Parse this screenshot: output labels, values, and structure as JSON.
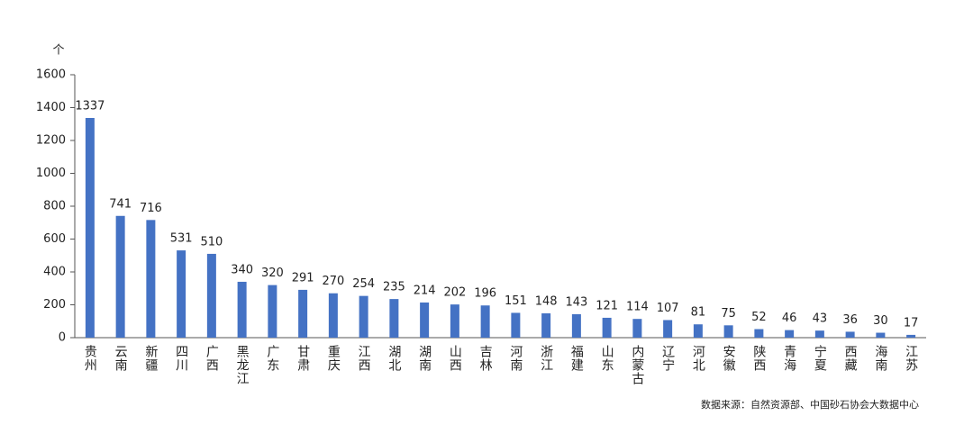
{
  "chart_data": {
    "type": "bar",
    "y_label": "个",
    "source": "数据来源：自然资源部、中国砂石协会大数据中心",
    "categories": [
      "贵州",
      "云南",
      "新疆",
      "四川",
      "广西",
      "黑龙江",
      "广东",
      "甘肃",
      "重庆",
      "江西",
      "湖北",
      "湖南",
      "山西",
      "吉林",
      "河南",
      "浙江",
      "福建",
      "山东",
      "内蒙古",
      "辽宁",
      "河北",
      "安徽",
      "陕西",
      "青海",
      "宁夏",
      "西藏",
      "海南",
      "江苏"
    ],
    "values": [
      1337,
      741,
      716,
      531,
      510,
      340,
      320,
      291,
      270,
      254,
      235,
      214,
      202,
      196,
      151,
      148,
      143,
      121,
      114,
      107,
      81,
      75,
      52,
      46,
      43,
      36,
      30,
      17
    ],
    "color": "#4472c4",
    "ylim": [
      0,
      1600
    ],
    "yticks": [
      0,
      200,
      400,
      600,
      800,
      1000,
      1200,
      1400,
      1600
    ],
    "grid": false
  }
}
